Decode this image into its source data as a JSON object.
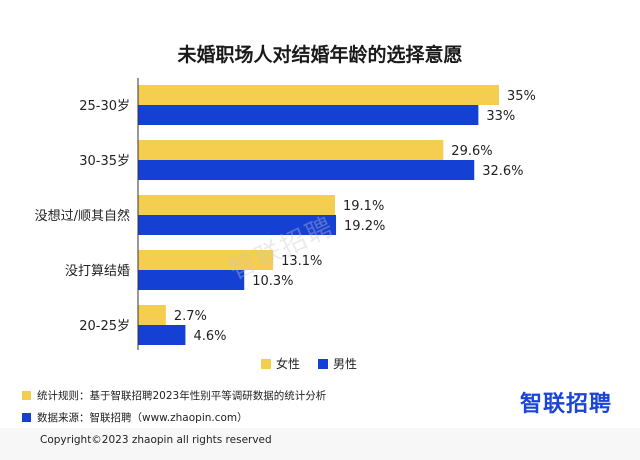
{
  "chart_data": {
    "type": "bar",
    "orientation": "horizontal",
    "title": "未婚职场人对结婚年龄的选择意愿",
    "categories": [
      "25-30岁",
      "30-35岁",
      "没想过/顺其自然",
      "没打算结婚",
      "20-25岁"
    ],
    "series": [
      {
        "name": "女性",
        "values": [
          35,
          29.6,
          19.1,
          13.1,
          2.7
        ],
        "labels": [
          "35%",
          "29.6%",
          "19.1%",
          "13.1%",
          "2.7%"
        ],
        "color": "#f5cd4f"
      },
      {
        "name": "男性",
        "values": [
          33,
          32.6,
          19.2,
          10.3,
          4.6
        ],
        "labels": [
          "33%",
          "32.6%",
          "19.2%",
          "10.3%",
          "4.6%"
        ],
        "color": "#1540d4"
      }
    ],
    "xlim": [
      0,
      35
    ],
    "legend_position": "bottom"
  },
  "notes": [
    {
      "text": "统计规则：基于智联招聘2023年性别平等调研数据的统计分析",
      "color": "#f5cd4f"
    },
    {
      "text": "数据来源：智联招聘（www.zhaopin.com）",
      "color": "#1540d4"
    }
  ],
  "brand": "智联招聘",
  "watermark": "智联招聘",
  "copyright": "Copyright©2023 zhaopin all rights reserved"
}
